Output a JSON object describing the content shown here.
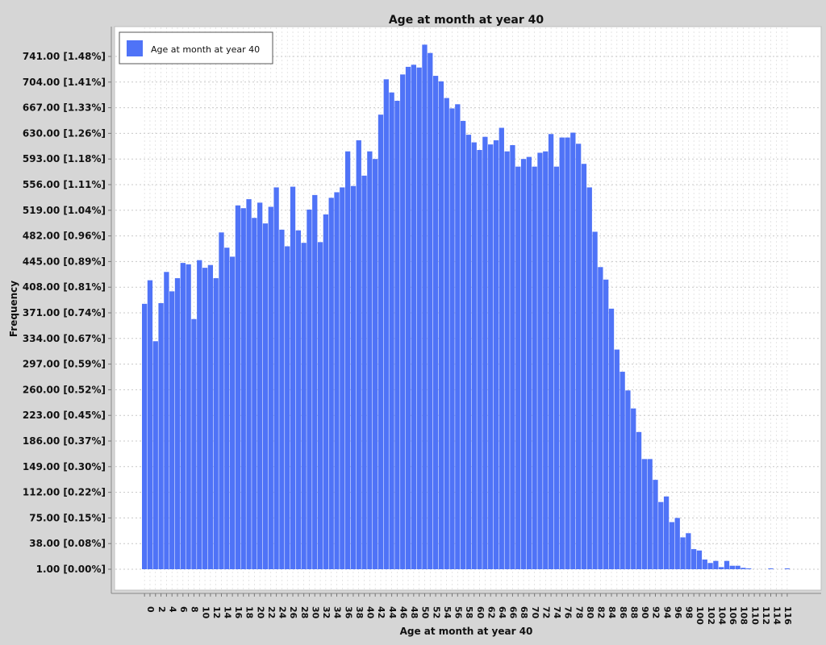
{
  "chart_data": {
    "type": "bar",
    "title": "Age at month at year 40",
    "xlabel": "Age at month at year 40",
    "ylabel": "Frequency",
    "legend": {
      "label": "Age at month at year 40",
      "placement": "top-left"
    },
    "bar_color": "#4f73f7",
    "plot_background": "#ffffff",
    "page_background": "#d6d6d6",
    "grid": true,
    "ylim": [
      1,
      741
    ],
    "yticks": [
      {
        "value": 1,
        "label": "1.00 [0.00%]"
      },
      {
        "value": 38,
        "label": "38.00 [0.08%]"
      },
      {
        "value": 75,
        "label": "75.00 [0.15%]"
      },
      {
        "value": 112,
        "label": "112.00 [0.22%]"
      },
      {
        "value": 149,
        "label": "149.00 [0.30%]"
      },
      {
        "value": 186,
        "label": "186.00 [0.37%]"
      },
      {
        "value": 223,
        "label": "223.00 [0.45%]"
      },
      {
        "value": 260,
        "label": "260.00 [0.52%]"
      },
      {
        "value": 297,
        "label": "297.00 [0.59%]"
      },
      {
        "value": 334,
        "label": "334.00 [0.67%]"
      },
      {
        "value": 371,
        "label": "371.00 [0.74%]"
      },
      {
        "value": 408,
        "label": "408.00 [0.81%]"
      },
      {
        "value": 445,
        "label": "445.00 [0.89%]"
      },
      {
        "value": 482,
        "label": "482.00 [0.96%]"
      },
      {
        "value": 519,
        "label": "519.00 [1.04%]"
      },
      {
        "value": 556,
        "label": "556.00 [1.11%]"
      },
      {
        "value": 593,
        "label": "593.00 [1.18%]"
      },
      {
        "value": 630,
        "label": "630.00 [1.26%]"
      },
      {
        "value": 667,
        "label": "667.00 [1.33%]"
      },
      {
        "value": 704,
        "label": "704.00 [1.41%]"
      },
      {
        "value": 741,
        "label": "741.00 [1.48%]"
      }
    ],
    "categories": [
      0,
      1,
      2,
      3,
      4,
      5,
      6,
      7,
      8,
      9,
      10,
      11,
      12,
      13,
      14,
      15,
      16,
      17,
      18,
      19,
      20,
      21,
      22,
      23,
      24,
      25,
      26,
      27,
      28,
      29,
      30,
      31,
      32,
      33,
      34,
      35,
      36,
      37,
      38,
      39,
      40,
      41,
      42,
      43,
      44,
      45,
      46,
      47,
      48,
      49,
      50,
      51,
      52,
      53,
      54,
      55,
      56,
      57,
      58,
      59,
      60,
      61,
      62,
      63,
      64,
      65,
      66,
      67,
      68,
      69,
      70,
      71,
      72,
      73,
      74,
      75,
      76,
      77,
      78,
      79,
      80,
      81,
      82,
      83,
      84,
      85,
      86,
      87,
      88,
      89,
      90,
      91,
      92,
      93,
      94,
      95,
      96,
      97,
      98,
      99,
      100,
      101,
      102,
      103,
      104,
      105,
      106,
      107,
      108,
      109,
      110,
      111,
      112,
      113,
      114,
      115,
      116,
      117
    ],
    "tick_labels": [
      "0",
      "",
      "2",
      "",
      "4",
      "",
      "6",
      "",
      "8",
      "",
      "10",
      "",
      "12",
      "",
      "14",
      "",
      "16",
      "",
      "18",
      "",
      "20",
      "",
      "22",
      "",
      "24",
      "",
      "26",
      "",
      "28",
      "",
      "30",
      "",
      "32",
      "",
      "34",
      "",
      "36",
      "",
      "38",
      "",
      "40",
      "",
      "42",
      "",
      "44",
      "",
      "46",
      "",
      "48",
      "",
      "50",
      "",
      "52",
      "",
      "54",
      "",
      "56",
      "",
      "58",
      "",
      "60",
      "",
      "62",
      "",
      "64",
      "",
      "66",
      "",
      "68",
      "",
      "70",
      "",
      "72",
      "",
      "74",
      "",
      "76",
      "",
      "78",
      "",
      "80",
      "",
      "82",
      "",
      "84",
      "",
      "86",
      "",
      "88",
      "",
      "90",
      "",
      "92",
      "",
      "94",
      "",
      "96",
      "",
      "98",
      "",
      "100",
      "",
      "102",
      "",
      "104",
      "",
      "106",
      "",
      "108",
      "",
      "110",
      "",
      "112",
      "",
      "114",
      "",
      "116",
      ""
    ],
    "values": [
      384,
      418,
      330,
      385,
      430,
      402,
      421,
      443,
      441,
      362,
      447,
      436,
      440,
      421,
      487,
      465,
      452,
      526,
      522,
      535,
      508,
      530,
      500,
      524,
      552,
      491,
      467,
      553,
      490,
      472,
      520,
      541,
      473,
      513,
      537,
      545,
      552,
      604,
      554,
      620,
      569,
      604,
      593,
      657,
      708,
      689,
      677,
      715,
      726,
      729,
      725,
      758,
      746,
      713,
      705,
      681,
      666,
      672,
      648,
      628,
      617,
      606,
      625,
      614,
      620,
      638,
      604,
      613,
      582,
      593,
      596,
      582,
      602,
      604,
      629,
      582,
      624,
      624,
      631,
      615,
      586,
      552,
      488,
      437,
      419,
      377,
      318,
      286,
      259,
      233,
      199,
      160,
      160,
      130,
      98,
      106,
      69,
      75,
      47,
      53,
      30,
      28,
      15,
      10,
      13,
      4,
      13,
      6,
      6,
      3,
      0.5,
      0,
      0,
      0,
      0.5,
      0,
      0,
      0.5
    ]
  }
}
